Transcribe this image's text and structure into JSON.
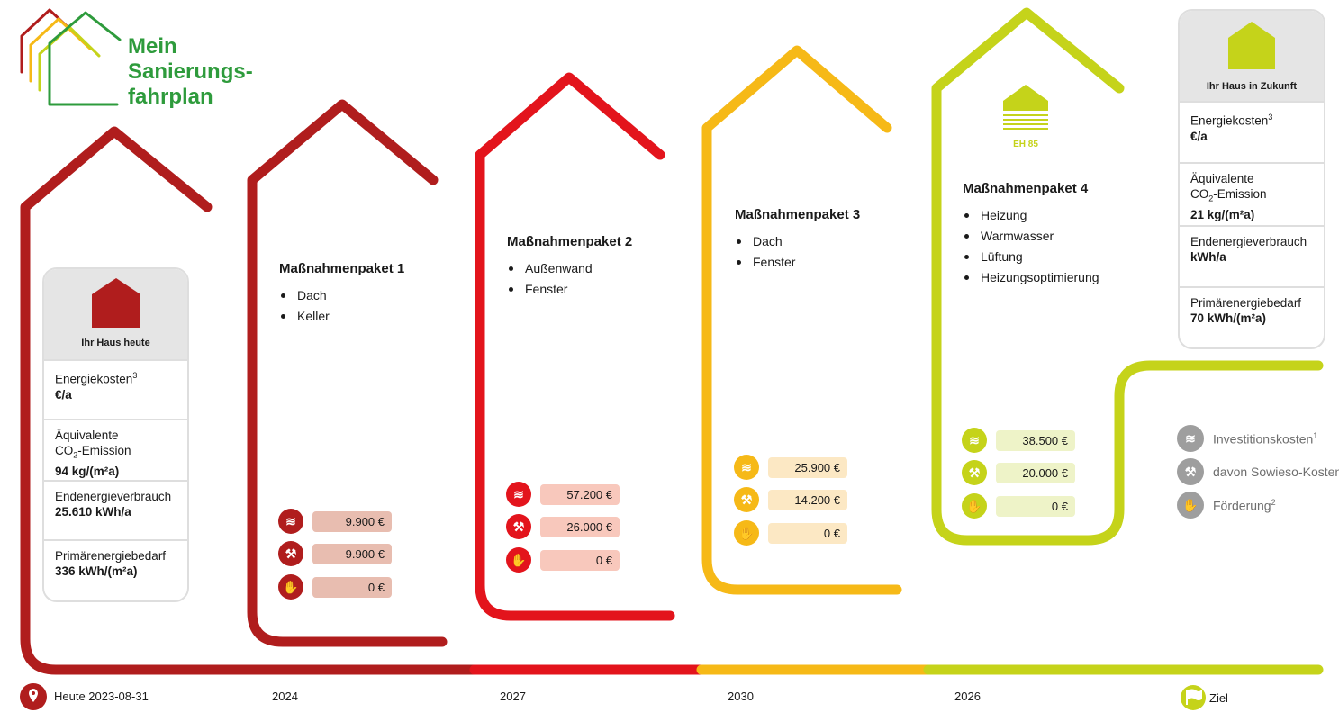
{
  "logo": {
    "line1": "Mein",
    "line2": "Sanierungs-",
    "line3": "fahrplan"
  },
  "colors": {
    "dark_red": "#b01d1d",
    "red": "#e3141c",
    "orange": "#f6b917",
    "lime": "#c5d31a",
    "green": "#2e9b3c",
    "gray": "#9e9e9e"
  },
  "today_card": {
    "label": "Ihr Haus heute",
    "rows": [
      {
        "label": "Energiekosten",
        "sup": "3",
        "value": "€/a"
      },
      {
        "label": "Äquivalente",
        "label2": "CO",
        "sub": "2",
        "label3": "-Emission",
        "value": "94 kg/(m²a)"
      },
      {
        "label": "Endenergieverbrauch",
        "value": "25.610 kWh/a"
      },
      {
        "label": "Primärenergiebedarf",
        "value": "336 kWh/(m²a)"
      }
    ]
  },
  "future_card": {
    "label": "Ihr Haus in Zukunft",
    "rows": [
      {
        "label": "Energiekosten",
        "sup": "3",
        "value": "€/a"
      },
      {
        "label": "Äquivalente",
        "label2": "CO",
        "sub": "2",
        "label3": "-Emission",
        "value": "21 kg/(m²a)"
      },
      {
        "label": "Endenergieverbrauch",
        "value": "kWh/a"
      },
      {
        "label": "Primärenergiebedarf",
        "value": "70 kWh/(m²a)"
      }
    ]
  },
  "packages": [
    {
      "title": "Maßnahmenpaket 1",
      "items": [
        "Dach",
        "Keller"
      ],
      "investment": "9.900 €",
      "sowieso": "9.900 €",
      "funding": "0 €"
    },
    {
      "title": "Maßnahmenpaket 2",
      "items": [
        "Außenwand",
        "Fenster"
      ],
      "investment": "57.200 €",
      "sowieso": "26.000 €",
      "funding": "0 €"
    },
    {
      "title": "Maßnahmenpaket 3",
      "items": [
        "Dach",
        "Fenster"
      ],
      "investment": "25.900 €",
      "sowieso": "14.200 €",
      "funding": "0 €"
    },
    {
      "title": "Maßnahmenpaket 4",
      "items": [
        "Heizung",
        "Warmwasser",
        "Lüftung",
        "Heizungsoptimierung"
      ],
      "investment": "38.500 €",
      "sowieso": "20.000 €",
      "funding": "0 €"
    }
  ],
  "eh_badge": "EH 85",
  "legend": {
    "investment": "Investitionskosten",
    "investment_sup": "1",
    "sowieso": "davon Sowieso-Kosten",
    "funding": "Förderung",
    "funding_sup": "2"
  },
  "timeline": {
    "today": "Heute 2023-08-31",
    "years": [
      "2024",
      "2027",
      "2030",
      "2026"
    ],
    "goal": "Ziel"
  },
  "icons": {
    "location": "location-pin-icon",
    "goal": "flag-icon",
    "coins": "coins-icon",
    "wrench": "wrench-coins-icon",
    "hand": "hand-coins-icon",
    "house": "house-icon"
  }
}
